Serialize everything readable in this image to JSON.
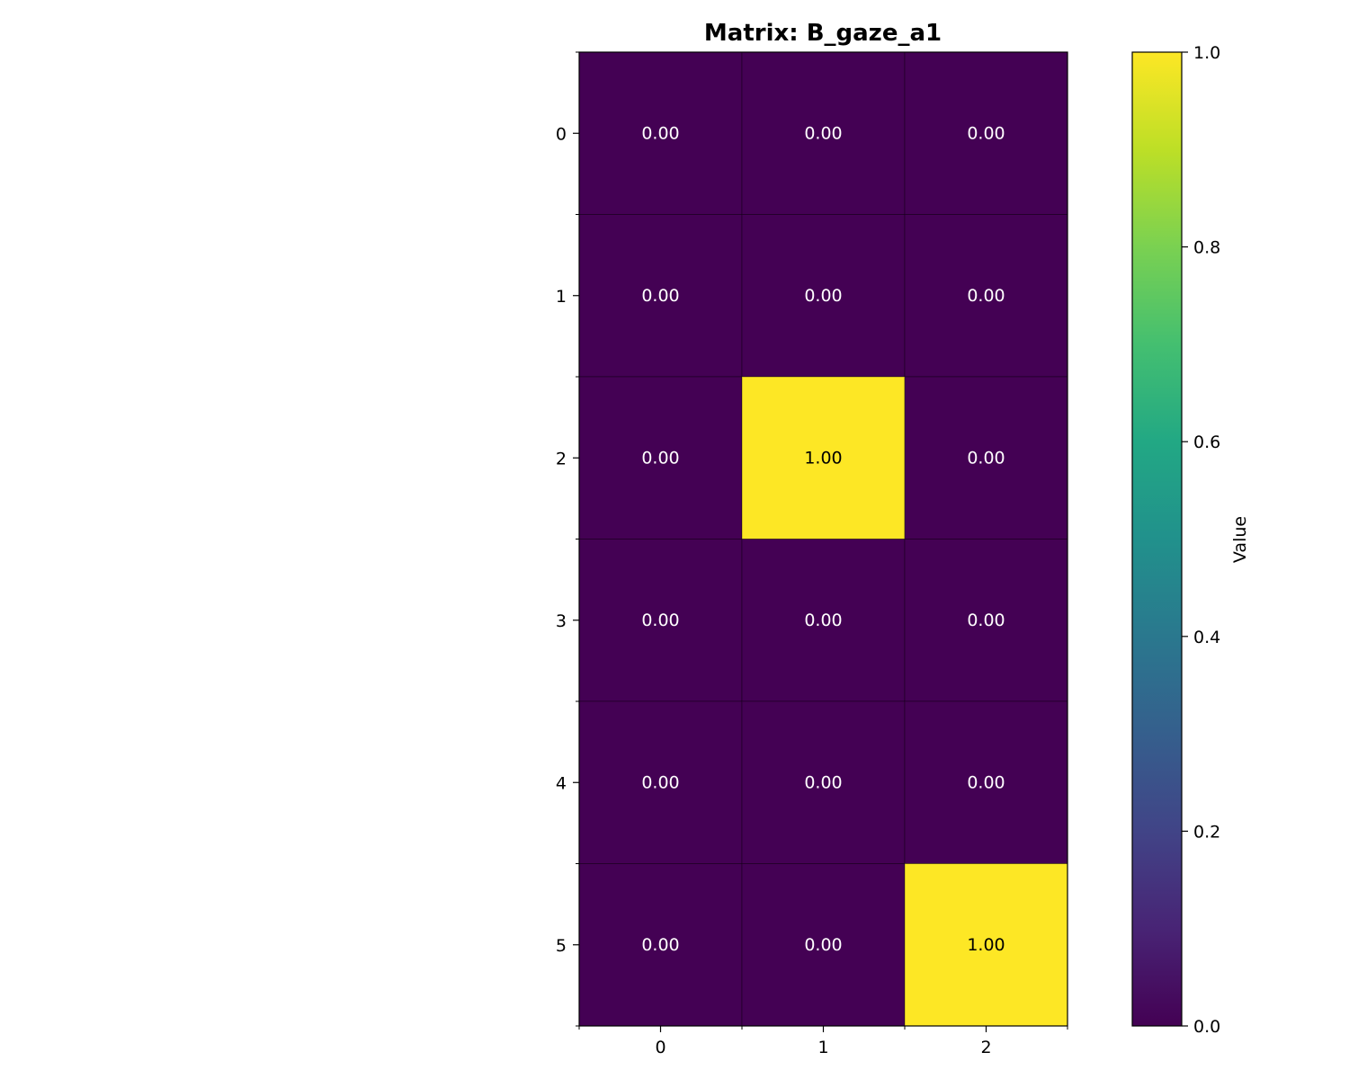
{
  "chart_data": {
    "type": "heatmap",
    "title": "Matrix: B_gaze_a1",
    "xlabel": "",
    "ylabel": "",
    "x_tick_labels": [
      "0",
      "1",
      "2"
    ],
    "y_tick_labels": [
      "0",
      "1",
      "2",
      "3",
      "4",
      "5"
    ],
    "values": [
      [
        0,
        0,
        0
      ],
      [
        0,
        0,
        0
      ],
      [
        0,
        1,
        0
      ],
      [
        0,
        0,
        0
      ],
      [
        0,
        0,
        0
      ],
      [
        0,
        0,
        1
      ]
    ],
    "cell_labels": [
      [
        "0.00",
        "0.00",
        "0.00"
      ],
      [
        "0.00",
        "0.00",
        "0.00"
      ],
      [
        "0.00",
        "1.00",
        "0.00"
      ],
      [
        "0.00",
        "0.00",
        "0.00"
      ],
      [
        "0.00",
        "0.00",
        "0.00"
      ],
      [
        "0.00",
        "0.00",
        "1.00"
      ]
    ],
    "colormap": "viridis",
    "colors": {
      "low": "#440154",
      "high": "#fde725"
    },
    "vmin": 0.0,
    "vmax": 1.0,
    "colorbar": {
      "label": "Value",
      "ticks": [
        0.0,
        0.2,
        0.4,
        0.6,
        0.8,
        1.0
      ],
      "tick_labels": [
        "0.0",
        "0.2",
        "0.4",
        "0.6",
        "0.8",
        "1.0"
      ]
    }
  }
}
